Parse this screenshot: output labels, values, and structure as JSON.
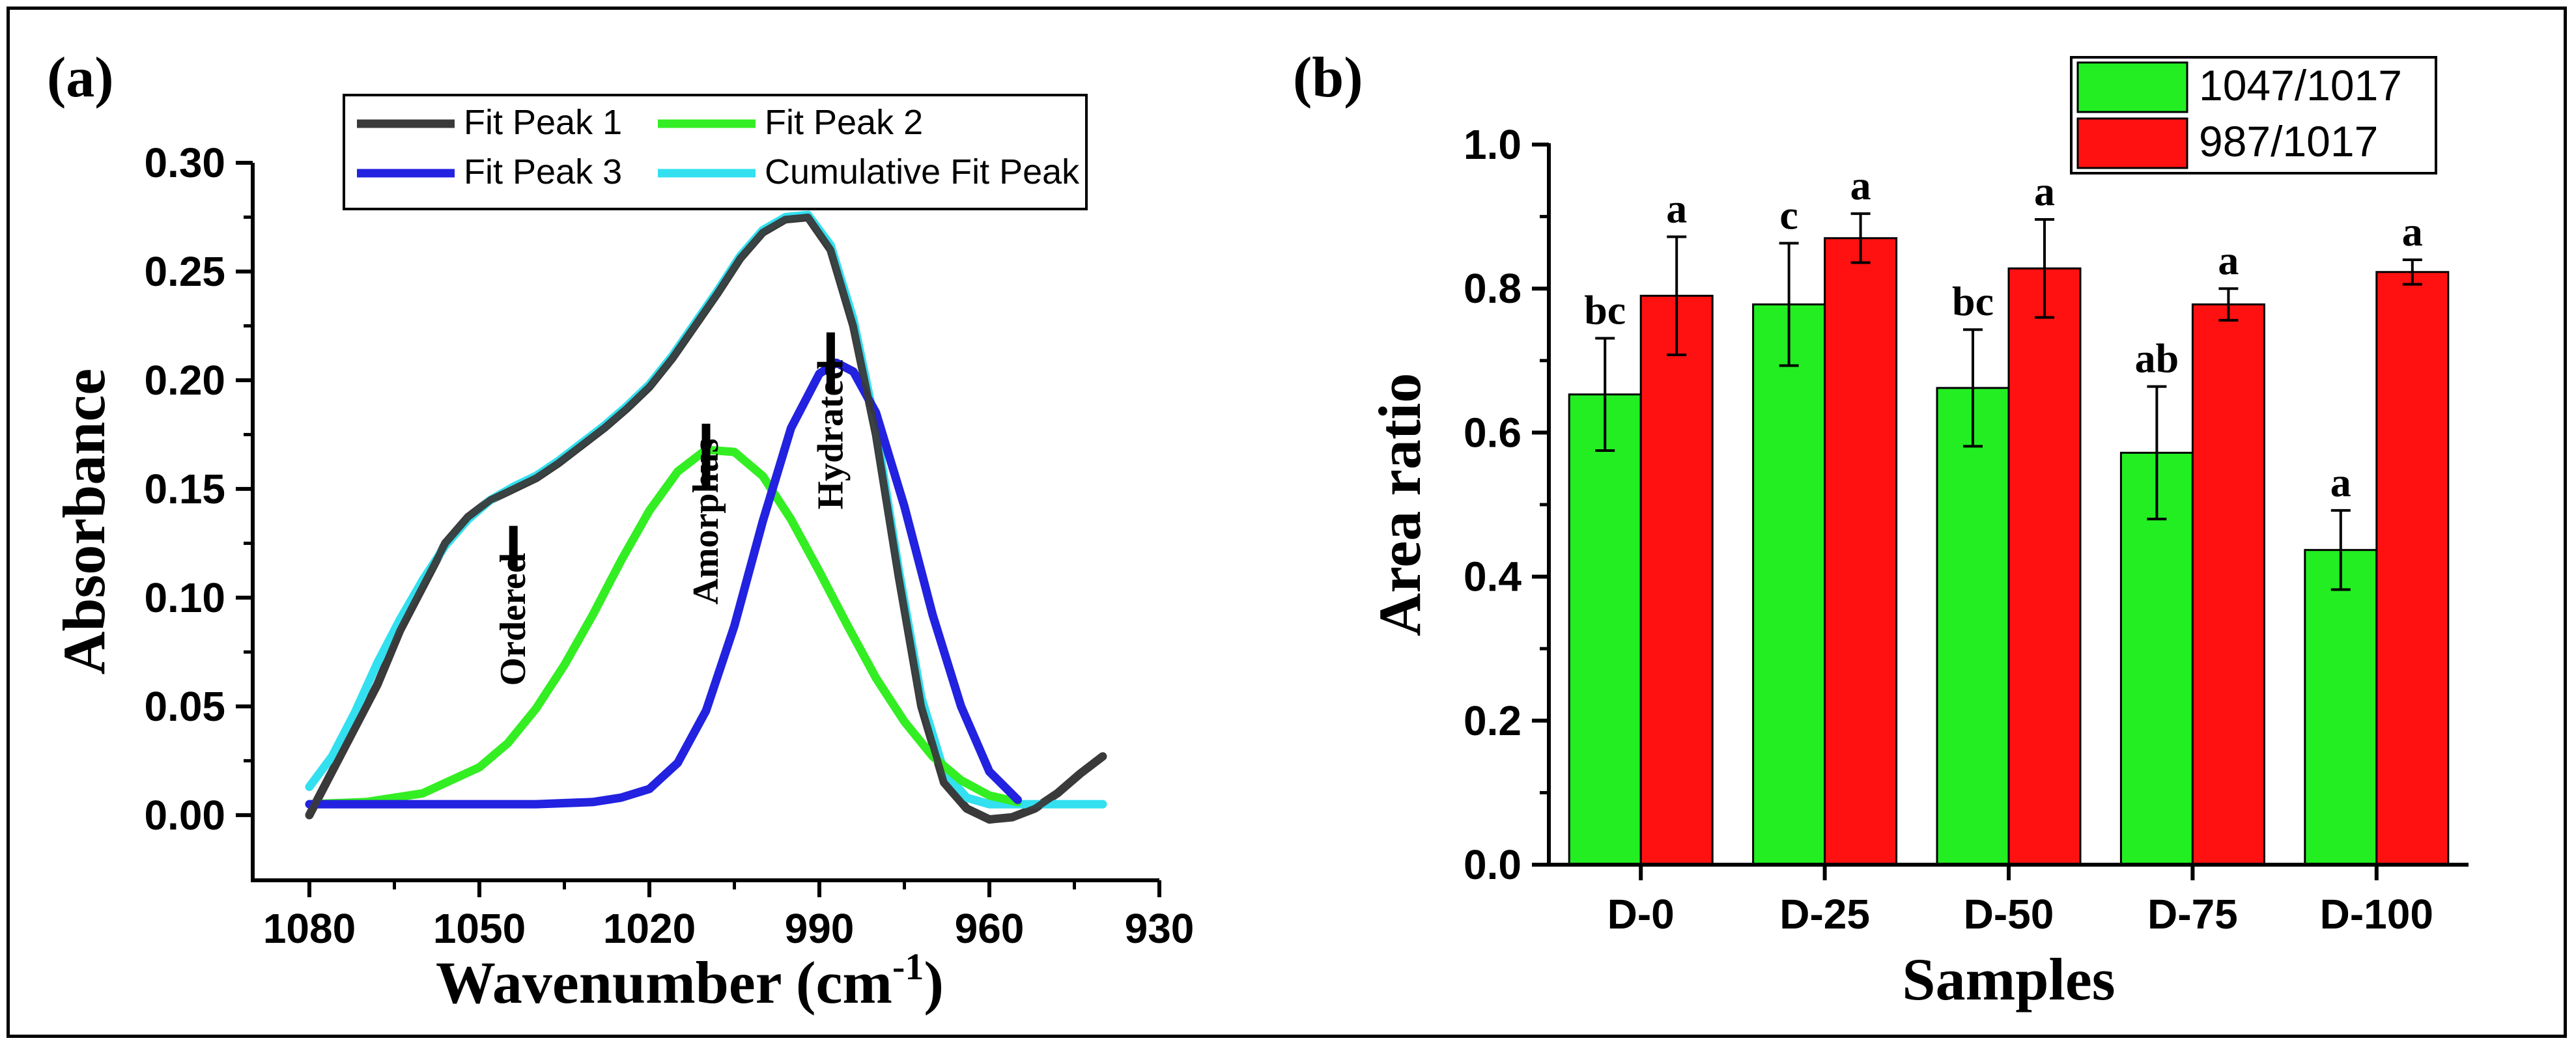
{
  "panels": {
    "a_label": "(a)",
    "b_label": "(b)"
  },
  "chart_data": [
    {
      "type": "line",
      "panel": "(a)",
      "xlabel": "Wavenumber (cm",
      "xlabel_sup": "-1",
      "xlabel_close": ")",
      "ylabel": "Absorbance",
      "xlim": [
        1090,
        930
      ],
      "x_reversed": true,
      "ylim": [
        -0.03,
        0.3
      ],
      "x_ticks": [
        "1080",
        "1050",
        "1020",
        "990",
        "960",
        "930"
      ],
      "x_tick_values": [
        1080,
        1050,
        1020,
        990,
        960,
        930
      ],
      "y_ticks": [
        "0.00",
        "0.05",
        "0.10",
        "0.15",
        "0.20",
        "0.25",
        "0.30"
      ],
      "y_tick_values": [
        0,
        0.05,
        0.1,
        0.15,
        0.2,
        0.25,
        0.3
      ],
      "legend": {
        "placement": "top",
        "entries": [
          "Fit Peak 1",
          "Fit Peak 2",
          "Fit Peak 3",
          "Cumulative Fit Peak"
        ]
      },
      "series": [
        {
          "name": "Fit Peak 1",
          "color": "#3a3a3a",
          "x": [
            1080,
            1076,
            1072,
            1068,
            1064,
            1060,
            1056,
            1052,
            1048,
            1044,
            1040,
            1036,
            1032,
            1028,
            1024,
            1020,
            1016,
            1012,
            1008,
            1004,
            1000,
            996,
            992,
            988,
            984,
            980,
            976,
            972,
            968,
            964,
            960,
            956,
            952,
            948,
            944,
            940
          ],
          "y": [
            0.0,
            0.02,
            0.04,
            0.06,
            0.085,
            0.105,
            0.125,
            0.137,
            0.145,
            0.15,
            0.155,
            0.162,
            0.17,
            0.178,
            0.187,
            0.197,
            0.21,
            0.225,
            0.24,
            0.256,
            0.268,
            0.274,
            0.275,
            0.26,
            0.225,
            0.175,
            0.11,
            0.05,
            0.015,
            0.003,
            -0.002,
            -0.001,
            0.003,
            0.01,
            0.019,
            0.027
          ]
        },
        {
          "name": "Cumulative Fit Peak",
          "color": "#33e0f0",
          "x": [
            1080,
            1076,
            1072,
            1068,
            1064,
            1060,
            1056,
            1052,
            1048,
            1044,
            1040,
            1036,
            1032,
            1028,
            1024,
            1020,
            1016,
            1012,
            1008,
            1004,
            1000,
            996,
            992,
            988,
            984,
            980,
            976,
            972,
            968,
            964,
            960,
            956,
            952,
            948,
            944,
            940
          ],
          "y": [
            0.013,
            0.027,
            0.047,
            0.07,
            0.09,
            0.108,
            0.124,
            0.136,
            0.145,
            0.151,
            0.156,
            0.163,
            0.171,
            0.179,
            0.188,
            0.198,
            0.211,
            0.226,
            0.241,
            0.257,
            0.269,
            0.275,
            0.276,
            0.262,
            0.228,
            0.178,
            0.113,
            0.054,
            0.02,
            0.008,
            0.005,
            0.005,
            0.005,
            0.005,
            0.005,
            0.005
          ]
        },
        {
          "name": "Fit Peak 2",
          "color": "#33ee22",
          "x": [
            1080,
            1070,
            1060,
            1050,
            1045,
            1040,
            1035,
            1030,
            1025,
            1020,
            1015,
            1010,
            1005,
            1000,
            995,
            990,
            985,
            980,
            975,
            970,
            965,
            960,
            955
          ],
          "y": [
            0.005,
            0.006,
            0.01,
            0.022,
            0.033,
            0.049,
            0.069,
            0.092,
            0.117,
            0.14,
            0.158,
            0.168,
            0.167,
            0.156,
            0.136,
            0.112,
            0.087,
            0.063,
            0.043,
            0.027,
            0.016,
            0.009,
            0.006
          ]
        },
        {
          "name": "Fit Peak 3",
          "color": "#2222e0",
          "x": [
            1080,
            1040,
            1030,
            1025,
            1020,
            1015,
            1010,
            1005,
            1000,
            995,
            990,
            987,
            984,
            980,
            975,
            970,
            965,
            960,
            955
          ],
          "y": [
            0.005,
            0.005,
            0.006,
            0.008,
            0.012,
            0.024,
            0.048,
            0.087,
            0.135,
            0.178,
            0.203,
            0.208,
            0.204,
            0.185,
            0.142,
            0.092,
            0.05,
            0.02,
            0.007
          ]
        }
      ],
      "annotations": [
        {
          "text": "Ordered",
          "x": 1044,
          "y": 0.09,
          "tick_y": [
            0.113,
            0.133
          ]
        },
        {
          "text": "Amorphus",
          "x": 1010,
          "y": 0.135,
          "tick_y": [
            0.15,
            0.18
          ]
        },
        {
          "text": "Hydrated",
          "x": 988,
          "y": 0.175,
          "tick_y": [
            0.195,
            0.222
          ]
        }
      ]
    },
    {
      "type": "bar",
      "panel": "(b)",
      "xlabel": "Samples",
      "ylabel": "Area ratio",
      "ylim": [
        0,
        1.0
      ],
      "y_ticks": [
        "0.0",
        "0.2",
        "0.4",
        "0.6",
        "0.8",
        "1.0"
      ],
      "y_tick_values": [
        0,
        0.2,
        0.4,
        0.6,
        0.8,
        1.0
      ],
      "categories": [
        "D-0",
        "D-25",
        "D-50",
        "D-75",
        "D-100"
      ],
      "legend": {
        "placement": "top-right"
      },
      "series": [
        {
          "name": "1047/1017",
          "color": "#22ee22",
          "values": [
            0.653,
            0.778,
            0.662,
            0.572,
            0.437
          ],
          "errors": [
            0.078,
            0.085,
            0.081,
            0.092,
            0.055
          ],
          "letters": [
            "bc",
            "c",
            "bc",
            "ab",
            "a"
          ]
        },
        {
          "name": "987/1017",
          "color": "#ff1111",
          "values": [
            0.79,
            0.87,
            0.828,
            0.778,
            0.823
          ],
          "errors": [
            0.082,
            0.034,
            0.068,
            0.022,
            0.017
          ],
          "letters": [
            "a",
            "a",
            "a",
            "a",
            "a"
          ]
        }
      ]
    }
  ]
}
